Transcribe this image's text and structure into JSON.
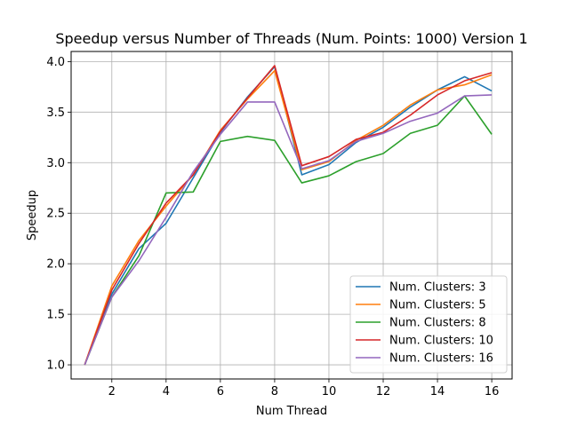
{
  "chart_data": {
    "type": "line",
    "title": "Speedup versus Number of Threads (Num. Points: 1000) Version 1",
    "xlabel": "Num Thread",
    "ylabel": "Speedup",
    "xlim": [
      0.5,
      16.75
    ],
    "ylim": [
      0.86,
      4.1
    ],
    "xticks": [
      2,
      4,
      6,
      8,
      10,
      12,
      14,
      16
    ],
    "yticks": [
      1.0,
      1.5,
      2.0,
      2.5,
      3.0,
      3.5,
      4.0
    ],
    "xtick_labels": [
      "2",
      "4",
      "6",
      "8",
      "10",
      "12",
      "14",
      "16"
    ],
    "ytick_labels": [
      "1.0",
      "1.5",
      "2.0",
      "2.5",
      "3.0",
      "3.5",
      "4.0"
    ],
    "grid": true,
    "legend_position": "lower-right",
    "x": [
      1,
      2,
      3,
      4,
      5,
      6,
      7,
      8,
      9,
      10,
      11,
      12,
      13,
      14,
      15,
      16
    ],
    "series": [
      {
        "name": "Num. Clusters: 3",
        "color": "#1f77b4",
        "values": [
          1.0,
          1.7,
          2.15,
          2.4,
          2.85,
          3.3,
          3.65,
          3.95,
          2.88,
          2.98,
          3.2,
          3.35,
          3.55,
          3.72,
          3.85,
          3.71
        ]
      },
      {
        "name": "Num. Clusters: 5",
        "color": "#ff7f0e",
        "values": [
          1.0,
          1.78,
          2.23,
          2.57,
          2.88,
          3.32,
          3.63,
          3.91,
          2.93,
          3.01,
          3.22,
          3.37,
          3.57,
          3.72,
          3.77,
          3.87
        ]
      },
      {
        "name": "Num. Clusters: 8",
        "color": "#2ca02c",
        "values": [
          1.0,
          1.67,
          2.08,
          2.7,
          2.71,
          3.21,
          3.26,
          3.22,
          2.8,
          2.87,
          3.01,
          3.09,
          3.29,
          3.37,
          3.66,
          3.28
        ]
      },
      {
        "name": "Num. Clusters: 10",
        "color": "#d62728",
        "values": [
          1.0,
          1.74,
          2.2,
          2.6,
          2.88,
          3.31,
          3.64,
          3.96,
          2.97,
          3.06,
          3.23,
          3.3,
          3.47,
          3.67,
          3.81,
          3.89
        ]
      },
      {
        "name": "Num. Clusters: 16",
        "color": "#9467bd",
        "values": [
          1.0,
          1.67,
          2.03,
          2.46,
          2.91,
          3.28,
          3.6,
          3.6,
          2.94,
          3.02,
          3.21,
          3.29,
          3.41,
          3.49,
          3.66,
          3.67
        ]
      }
    ]
  }
}
